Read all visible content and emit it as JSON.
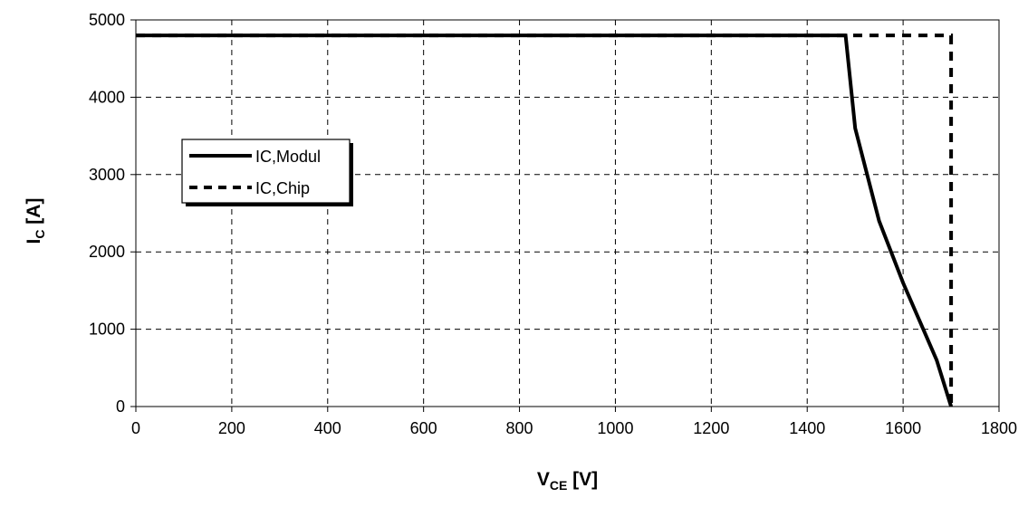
{
  "chart_data": {
    "type": "line",
    "xlabel_main": "V",
    "xlabel_sub": "CE",
    "xlabel_unit": " [V]",
    "ylabel_main": "I",
    "ylabel_sub": "C",
    "ylabel_unit": " [A]",
    "xlim": [
      0,
      1800
    ],
    "ylim": [
      0,
      5000
    ],
    "x_ticks": [
      0,
      200,
      400,
      600,
      800,
      1000,
      1200,
      1400,
      1600,
      1800
    ],
    "y_ticks": [
      0,
      1000,
      2000,
      3000,
      4000,
      5000
    ],
    "x_tick_labels": [
      "0",
      "200",
      "400",
      "600",
      "800",
      "1000",
      "1200",
      "1400",
      "1600",
      "1800"
    ],
    "y_tick_labels": [
      "0",
      "1000",
      "2000",
      "3000",
      "4000",
      "5000"
    ],
    "grid": true,
    "legend_position": "middle-left",
    "series": [
      {
        "name": "IC,Modul",
        "style": "solid",
        "color": "#000000",
        "points": [
          [
            0,
            4800
          ],
          [
            1480,
            4800
          ],
          [
            1500,
            3600
          ],
          [
            1550,
            2400
          ],
          [
            1600,
            1600
          ],
          [
            1670,
            600
          ],
          [
            1700,
            0
          ]
        ]
      },
      {
        "name": "IC,Chip",
        "style": "dashed",
        "color": "#000000",
        "points": [
          [
            0,
            4800
          ],
          [
            1700,
            4800
          ],
          [
            1700,
            0
          ]
        ]
      }
    ]
  }
}
